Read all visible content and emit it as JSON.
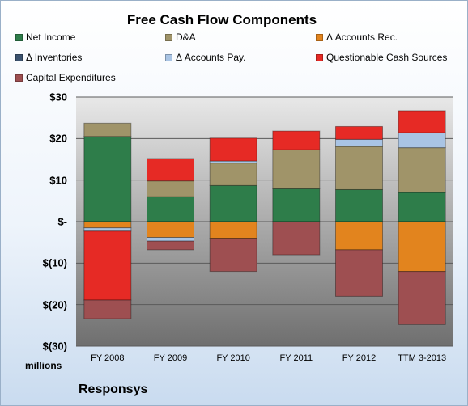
{
  "chart_data": {
    "type": "bar",
    "stacked": true,
    "title": "Free Cash Flow Components",
    "unit_label": "millions",
    "company": "Responsys",
    "categories": [
      "FY 2008",
      "FY 2009",
      "FY 2010",
      "FY 2011",
      "FY 2012",
      "TTM 3-2013"
    ],
    "ylim": [
      -30,
      30
    ],
    "yticks": [
      {
        "value": 30,
        "label": "$30"
      },
      {
        "value": 20,
        "label": "$20"
      },
      {
        "value": 10,
        "label": "$10"
      },
      {
        "value": 0,
        "label": "$-"
      },
      {
        "value": -10,
        "label": "$(10)"
      },
      {
        "value": -20,
        "label": "$(20)"
      },
      {
        "value": -30,
        "label": "$(30)"
      }
    ],
    "grid": true,
    "legend_position": "top",
    "series": [
      {
        "name": "Net Income",
        "color": "#2e7d4a",
        "values": [
          20.5,
          6.0,
          8.7,
          7.9,
          7.7,
          7.0
        ]
      },
      {
        "name": "D&A",
        "color": "#a09469",
        "values": [
          3.2,
          3.8,
          5.4,
          9.4,
          10.4,
          10.8
        ]
      },
      {
        "name": "Δ Accounts Rec.",
        "color": "#e2841e",
        "values": [
          -1.5,
          -3.8,
          -4.0,
          0,
          -6.8,
          -12.0
        ]
      },
      {
        "name": "Δ Inventories",
        "color": "#3b526e",
        "values": [
          0,
          0,
          0,
          0,
          0,
          0
        ]
      },
      {
        "name": "Δ Accounts Pay.",
        "color": "#a9c4e4",
        "values": [
          -0.8,
          -0.9,
          0.5,
          0,
          1.7,
          3.6
        ]
      },
      {
        "name": "Questionable Cash Sources",
        "color": "#e62a25",
        "values": [
          -16.6,
          5.4,
          5.5,
          4.5,
          3.1,
          5.3
        ]
      },
      {
        "name": "Capital Expenditures",
        "color": "#9e4f51",
        "values": [
          -4.5,
          -2.1,
          -8.0,
          -8.0,
          -11.2,
          -12.8
        ]
      }
    ]
  }
}
